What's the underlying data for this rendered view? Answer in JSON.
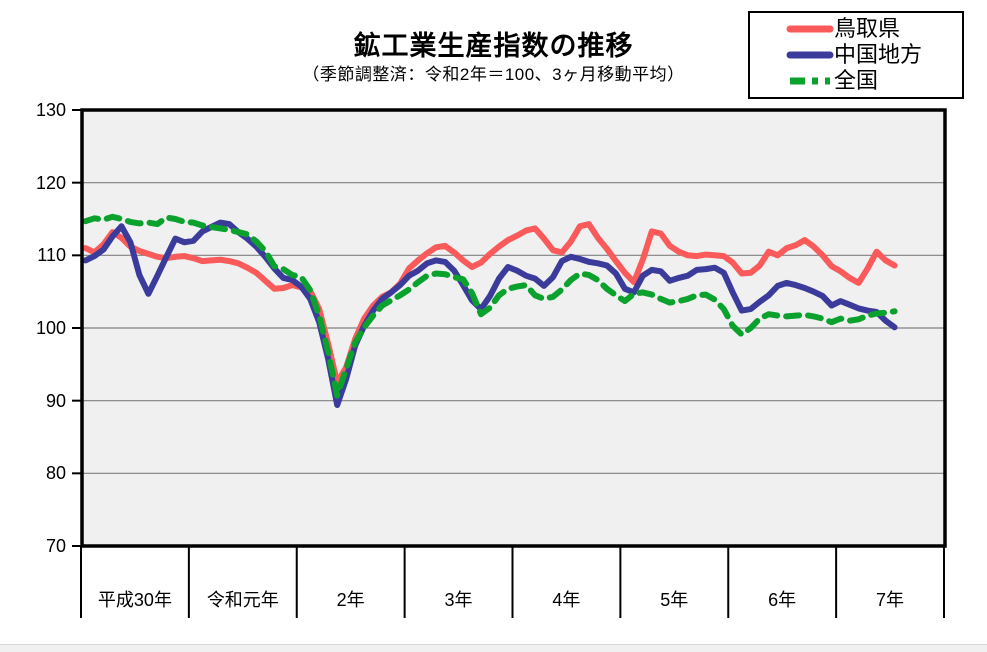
{
  "page": {
    "title": "鉱工業生産指数の推移",
    "subtitle": "（季節調整済：令和2年＝100、3ヶ月移動平均）"
  },
  "legend": {
    "items": [
      {
        "label": "鳥取県",
        "color": "#FA5A5A",
        "dash": null
      },
      {
        "label": "中国地方",
        "color": "#3B3B9B",
        "dash": null
      },
      {
        "label": "全国",
        "color": "#0AA12D",
        "dash": [
          15,
          7,
          6,
          7
        ]
      }
    ]
  },
  "colors": {
    "page_bg": "#FFFFFF",
    "plot_bg": "#F0F0F0",
    "grid": "#808080",
    "frame": "#000000"
  },
  "chart_data": {
    "type": "line",
    "title": "鉱工業生産指数の推移",
    "subtitle": "（季節調整済：令和2年＝100、3ヶ月移動平均）",
    "x_categories": [
      "平成30年",
      "令和元年",
      "2年",
      "3年",
      "4年",
      "5年",
      "6年",
      "7年"
    ],
    "months_per_category": 12,
    "points_plotted": 91,
    "y_ticks": [
      130,
      120,
      110,
      100,
      90,
      80,
      70
    ],
    "ylim": [
      70,
      130
    ],
    "grid": "horizontal",
    "legend_position": "top-right",
    "series": [
      {
        "name": "鳥取県",
        "color": "#FA5A5A",
        "dash": null,
        "values": [
          111.0,
          110.4,
          111.5,
          113.2,
          112.4,
          111.2,
          110.6,
          110.2,
          109.8,
          109.6,
          109.8,
          109.9,
          109.6,
          109.2,
          109.3,
          109.4,
          109.2,
          108.9,
          108.3,
          107.6,
          106.5,
          105.4,
          105.5,
          105.9,
          105.6,
          105.1,
          102.6,
          97.8,
          92.5,
          94.6,
          98.5,
          101.3,
          103.1,
          104.3,
          104.9,
          106.1,
          108.2,
          109.3,
          110.3,
          111.1,
          111.3,
          110.4,
          109.3,
          108.4,
          109.0,
          110.2,
          111.2,
          112.1,
          112.7,
          113.4,
          113.7,
          112.3,
          110.7,
          110.4,
          111.9,
          114.0,
          114.3,
          112.4,
          110.9,
          109.2,
          107.6,
          106.3,
          109.4,
          113.3,
          113.0,
          111.3,
          110.5,
          110.0,
          109.9,
          110.1,
          110.0,
          109.9,
          109.0,
          107.5,
          107.6,
          108.6,
          110.5,
          110.0,
          111.0,
          111.4,
          112.1,
          111.2,
          110.0,
          108.5,
          107.8,
          106.9,
          106.2,
          108.2,
          110.5,
          109.3,
          108.6
        ]
      },
      {
        "name": "中国地方",
        "color": "#3B3B9B",
        "dash": null,
        "values": [
          109.3,
          109.9,
          110.8,
          112.6,
          114.0,
          111.8,
          107.3,
          104.7,
          107.2,
          109.8,
          112.3,
          111.8,
          112.0,
          113.3,
          113.9,
          114.5,
          114.3,
          113.2,
          112.3,
          111.2,
          109.8,
          108.2,
          106.9,
          106.6,
          105.7,
          104.0,
          100.8,
          95.7,
          89.4,
          93.0,
          97.6,
          100.3,
          102.4,
          104.0,
          104.9,
          105.9,
          107.2,
          107.9,
          108.9,
          109.3,
          109.1,
          107.9,
          105.9,
          103.8,
          102.6,
          104.4,
          106.8,
          108.4,
          107.9,
          107.2,
          106.8,
          105.8,
          107.0,
          109.2,
          109.8,
          109.5,
          109.1,
          108.9,
          108.6,
          107.5,
          105.4,
          104.9,
          107.2,
          108.0,
          107.8,
          106.5,
          106.9,
          107.2,
          108.0,
          108.1,
          108.3,
          107.6,
          104.9,
          102.4,
          102.6,
          103.6,
          104.5,
          105.8,
          106.2,
          105.9,
          105.5,
          105.0,
          104.4,
          103.1,
          103.7,
          103.2,
          102.7,
          102.4,
          102.2,
          101.0,
          100.1
        ]
      },
      {
        "name": "全国",
        "color": "#0AA12D",
        "dash": [
          13,
          9
        ],
        "values": [
          114.7,
          115.1,
          114.9,
          115.3,
          115.0,
          114.6,
          114.4,
          114.5,
          114.3,
          115.2,
          115.0,
          114.6,
          114.5,
          114.1,
          113.9,
          113.7,
          113.5,
          113.2,
          112.9,
          111.9,
          110.6,
          108.5,
          108.1,
          107.3,
          107.0,
          105.2,
          101.7,
          96.7,
          90.7,
          94.4,
          98.0,
          100.1,
          101.7,
          103.1,
          103.8,
          104.5,
          105.3,
          106.3,
          107.2,
          107.5,
          107.4,
          107.0,
          106.7,
          104.8,
          101.9,
          102.8,
          104.5,
          105.4,
          105.7,
          105.9,
          104.5,
          104.0,
          104.3,
          105.3,
          106.6,
          107.5,
          107.3,
          106.6,
          105.4,
          104.5,
          103.7,
          104.7,
          104.9,
          104.6,
          104.0,
          103.5,
          103.7,
          104.0,
          104.5,
          104.6,
          103.9,
          102.6,
          100.3,
          99.1,
          100.0,
          101.3,
          101.9,
          101.7,
          101.6,
          101.7,
          101.8,
          101.6,
          101.3,
          100.8,
          101.3,
          101.0,
          101.2,
          101.7,
          102.0,
          102.1,
          102.3
        ]
      }
    ]
  }
}
